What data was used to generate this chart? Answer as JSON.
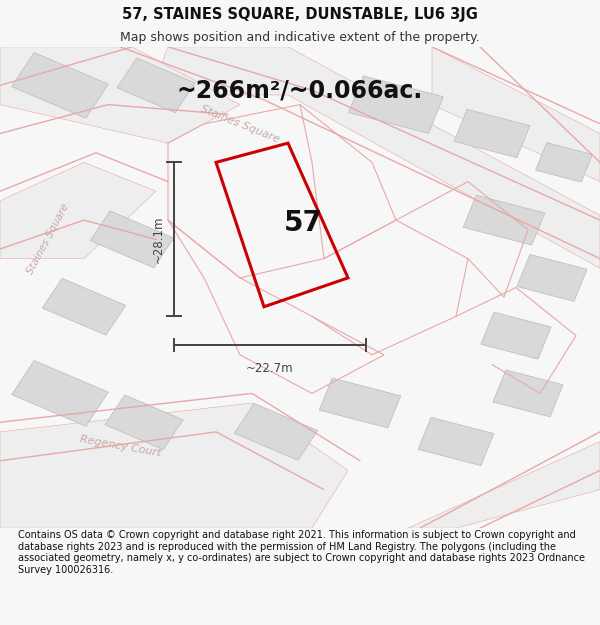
{
  "title": "57, STAINES SQUARE, DUNSTABLE, LU6 3JG",
  "subtitle": "Map shows position and indicative extent of the property.",
  "area_text": "~266m²/~0.066ac.",
  "number_label": "57",
  "dim_width": "~22.7m",
  "dim_height": "~28.1m",
  "footer": "Contains OS data © Crown copyright and database right 2021. This information is subject to Crown copyright and database rights 2023 and is reproduced with the permission of HM Land Registry. The polygons (including the associated geometry, namely x, y co-ordinates) are subject to Crown copyright and database rights 2023 Ordnance Survey 100026316.",
  "bg_color": "#f7f7f7",
  "map_bg": "#f9f9f9",
  "plot_color": "#cc0000",
  "road_fill": "#eeeeee",
  "road_line": "#e8a8a8",
  "building_fill": "#d9d9d9",
  "building_edge": "#c0c0c0",
  "street_color": "#c8a8a8",
  "dim_color": "#444444",
  "title_fs": 10.5,
  "subtitle_fs": 9,
  "area_fs": 17,
  "number_fs": 20,
  "footer_fs": 7,
  "street_fs": 8
}
